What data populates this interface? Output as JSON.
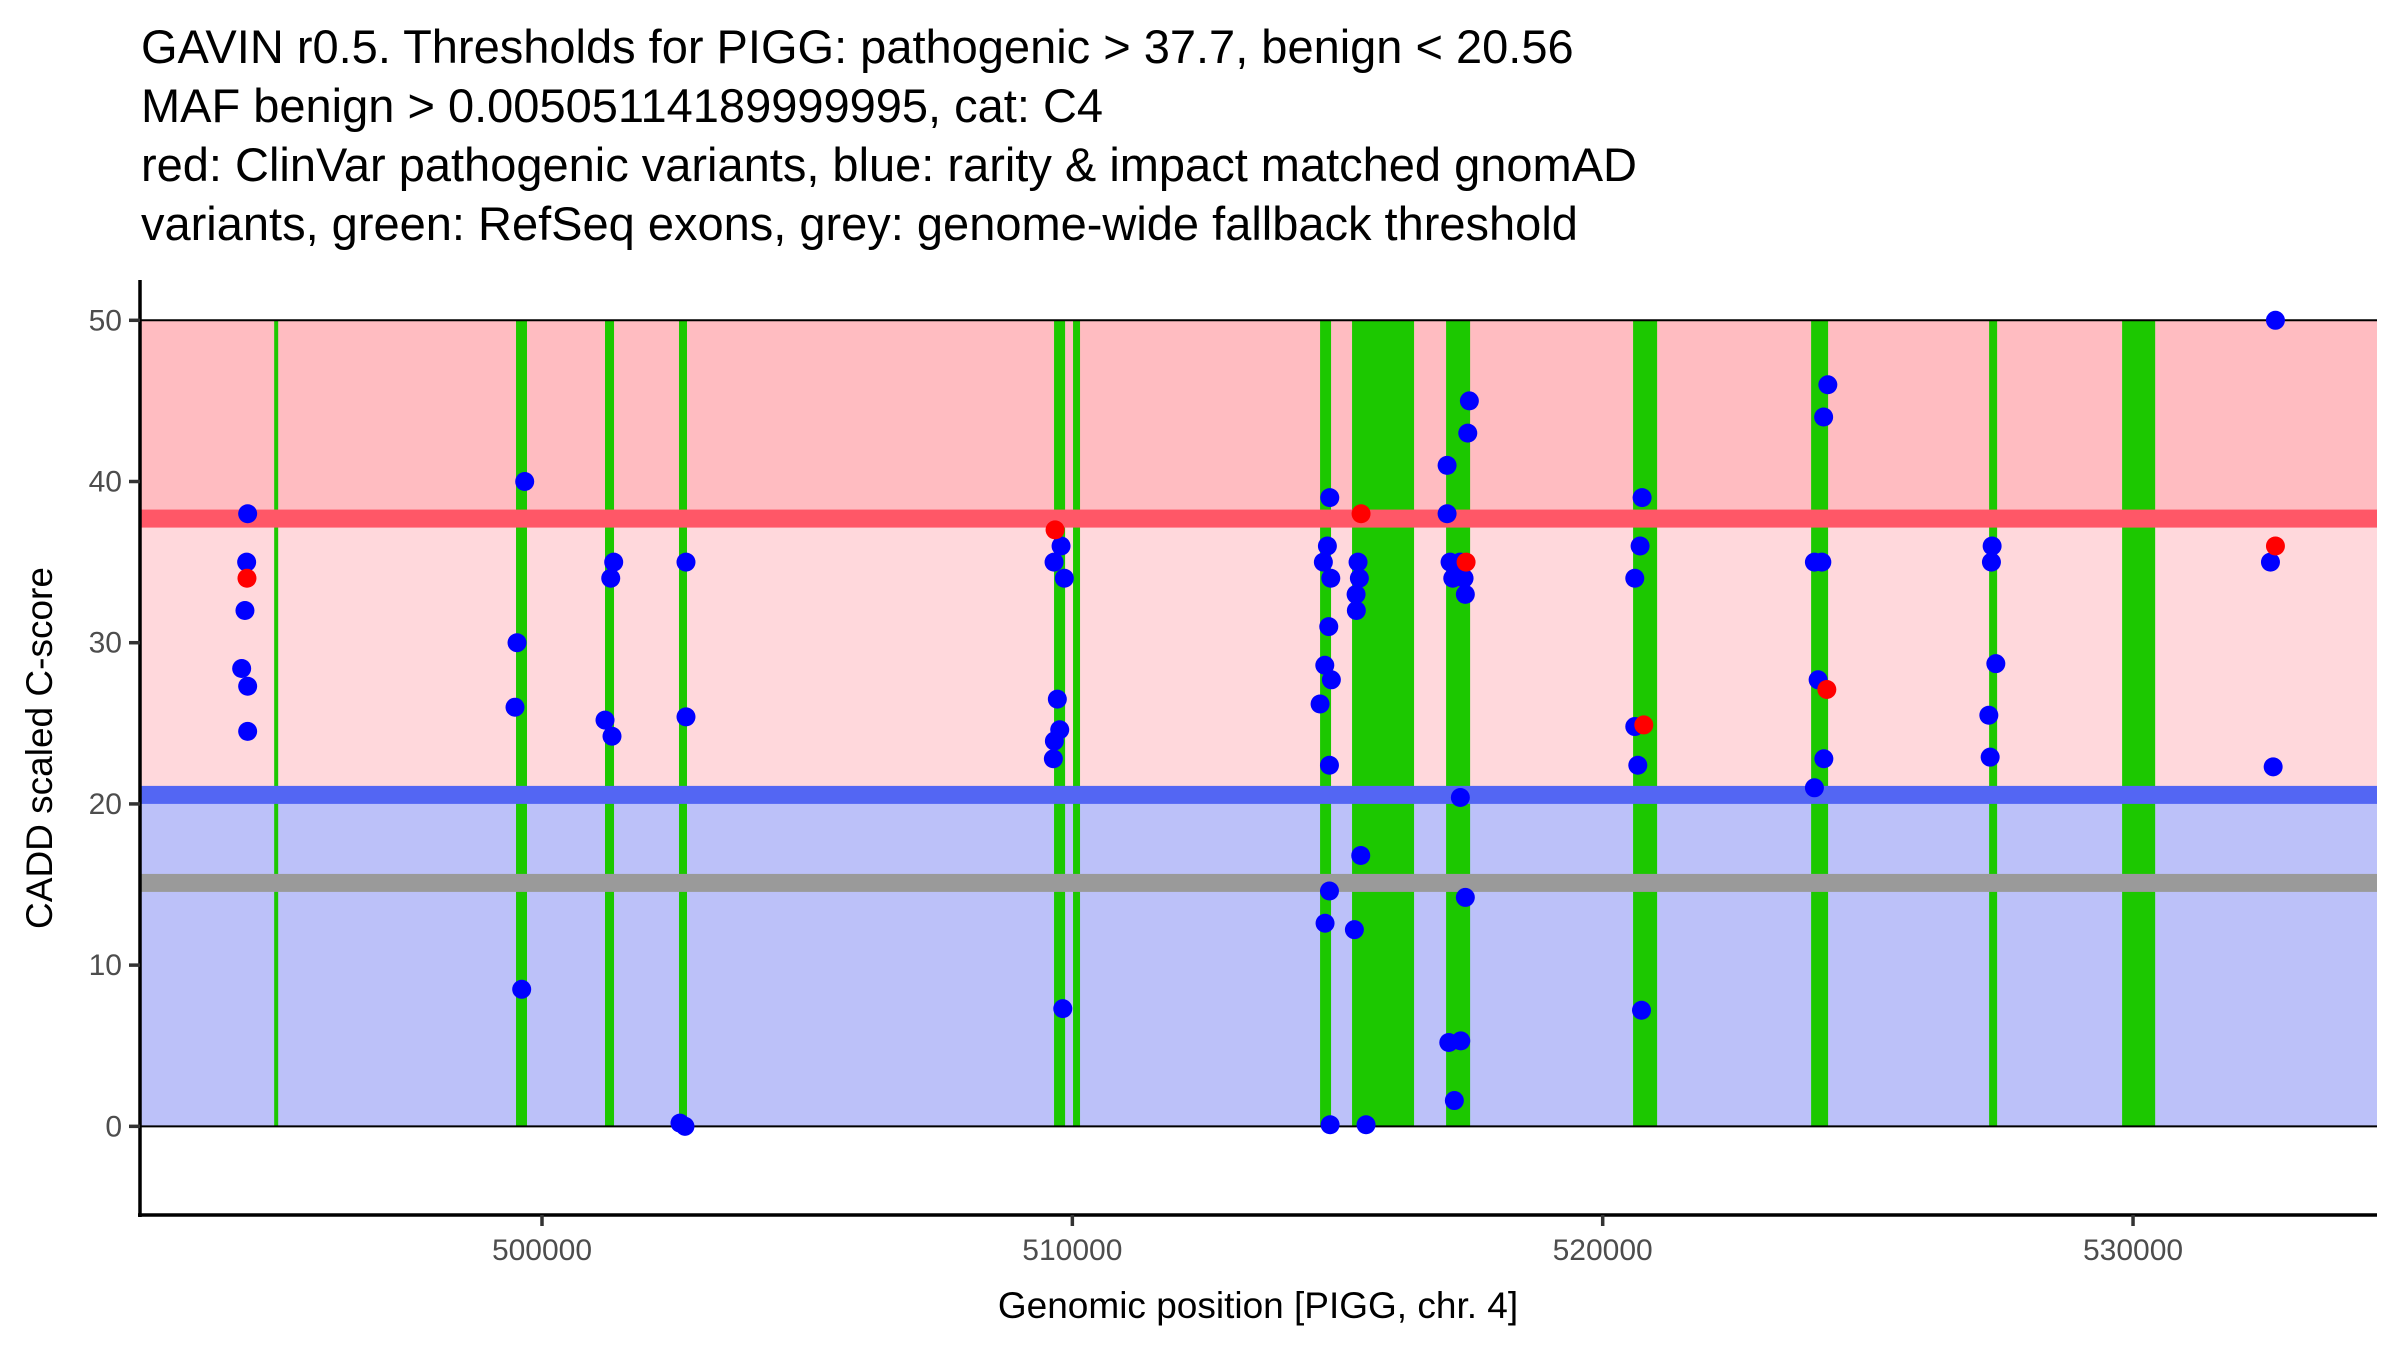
{
  "chart_data": {
    "type": "scatter",
    "title_lines": [
      "GAVIN r0.5. Thresholds for PIGG: pathogenic > 37.7, benign < 20.56",
      "MAF benign > 0.00505114189999995, cat: C4",
      "red: ClinVar pathogenic variants, blue: rarity & impact matched gnomAD",
      "variants, green: RefSeq exons, grey: genome-wide fallback threshold"
    ],
    "xlabel": "Genomic position [PIGG, chr. 4]",
    "ylabel": "CADD scaled C-score",
    "xlim": [
      492420,
      534600
    ],
    "ylim": [
      -5.5,
      52.5
    ],
    "x_ticks": [
      500000,
      510000,
      520000,
      530000
    ],
    "x_tick_labels": [
      "500000",
      "510000",
      "520000",
      "530000"
    ],
    "y_ticks": [
      0,
      10,
      20,
      30,
      40,
      50
    ],
    "y_tick_labels": [
      "0",
      "10",
      "20",
      "30",
      "40",
      "50"
    ],
    "grid": false,
    "legend": "none",
    "colors": {
      "pathogenic_zone": "#ffbcc1",
      "vus_zone": "#ffd8dc",
      "benign_zone": "#bcc1f9",
      "pathogenic_threshold": "#ff5767",
      "benign_threshold": "#5366f3",
      "fallback_threshold": "#9a9a9a",
      "exon": "#1cc800",
      "clinvar": "#ff0000",
      "gnomad": "#0000ff"
    },
    "zones": [
      {
        "name": "pathogenic",
        "from": 37.7,
        "to": 50
      },
      {
        "name": "vus",
        "from": 20.56,
        "to": 37.7
      },
      {
        "name": "benign",
        "from": 0,
        "to": 20.56
      }
    ],
    "thresholds": [
      {
        "name": "pathogenic",
        "value": 37.7
      },
      {
        "name": "benign",
        "value": 20.56
      },
      {
        "name": "fallback",
        "value": 15.1
      }
    ],
    "exons": [
      [
        494950,
        495020
      ],
      [
        499510,
        499717
      ],
      [
        501188,
        501358
      ],
      [
        502583,
        502734
      ],
      [
        509655,
        509863
      ],
      [
        510013,
        510145
      ],
      [
        514671,
        514878
      ],
      [
        515274,
        516443
      ],
      [
        517047,
        517500
      ],
      [
        520573,
        521026
      ],
      [
        523930,
        524250
      ],
      [
        527286,
        527437
      ],
      [
        529794,
        530417
      ]
    ],
    "series": [
      {
        "name": "gnomAD",
        "points": [
          [
            494450,
            38.0
          ],
          [
            494431,
            35.0
          ],
          [
            494399,
            32.0
          ],
          [
            494337,
            28.4
          ],
          [
            494450,
            27.3
          ],
          [
            494450,
            24.5
          ],
          [
            499674,
            40.0
          ],
          [
            499529,
            30.0
          ],
          [
            499491,
            26.0
          ],
          [
            499617,
            8.5
          ],
          [
            501352,
            35.0
          ],
          [
            501296,
            34.0
          ],
          [
            501188,
            25.2
          ],
          [
            501320,
            24.2
          ],
          [
            502715,
            35.0
          ],
          [
            502715,
            25.4
          ],
          [
            502602,
            0.2
          ],
          [
            502696,
            0.0
          ],
          [
            509787,
            36.0
          ],
          [
            509655,
            35.0
          ],
          [
            509849,
            34.0
          ],
          [
            509717,
            26.5
          ],
          [
            509762,
            24.6
          ],
          [
            509661,
            23.9
          ],
          [
            509642,
            22.8
          ],
          [
            509820,
            7.3
          ],
          [
            514854,
            39.0
          ],
          [
            514809,
            36.0
          ],
          [
            514733,
            35.0
          ],
          [
            514873,
            34.0
          ],
          [
            514835,
            31.0
          ],
          [
            514760,
            28.6
          ],
          [
            514884,
            27.7
          ],
          [
            514671,
            26.2
          ],
          [
            514848,
            22.4
          ],
          [
            514848,
            14.6
          ],
          [
            514765,
            12.6
          ],
          [
            514860,
            0.1
          ],
          [
            515387,
            35.0
          ],
          [
            515412,
            34.0
          ],
          [
            515350,
            33.0
          ],
          [
            515355,
            32.0
          ],
          [
            515438,
            16.8
          ],
          [
            515318,
            12.2
          ],
          [
            515538,
            0.1
          ],
          [
            517486,
            45.0
          ],
          [
            517456,
            43.0
          ],
          [
            517066,
            41.0
          ],
          [
            517066,
            38.0
          ],
          [
            517122,
            35.0
          ],
          [
            517311,
            35.0
          ],
          [
            517173,
            34.0
          ],
          [
            517386,
            34.0
          ],
          [
            517410,
            33.0
          ],
          [
            517316,
            20.4
          ],
          [
            517410,
            14.2
          ],
          [
            517098,
            5.2
          ],
          [
            517324,
            5.3
          ],
          [
            517203,
            1.6
          ],
          [
            520743,
            39.0
          ],
          [
            520705,
            36.0
          ],
          [
            520605,
            34.0
          ],
          [
            520605,
            24.8
          ],
          [
            520662,
            22.4
          ],
          [
            520732,
            7.2
          ],
          [
            524245,
            46.0
          ],
          [
            524166,
            44.0
          ],
          [
            523992,
            35.0
          ],
          [
            524132,
            35.0
          ],
          [
            524062,
            27.7
          ],
          [
            524170,
            22.8
          ],
          [
            523992,
            21.0
          ],
          [
            527343,
            36.0
          ],
          [
            527330,
            35.0
          ],
          [
            527413,
            28.7
          ],
          [
            527281,
            25.5
          ],
          [
            527306,
            22.9
          ],
          [
            532685,
            50.0
          ],
          [
            532591,
            35.0
          ],
          [
            532642,
            22.3
          ]
        ]
      },
      {
        "name": "ClinVar",
        "points": [
          [
            494437,
            34.0
          ],
          [
            509674,
            37.0
          ],
          [
            515444,
            38.0
          ],
          [
            517424,
            35.0
          ],
          [
            520775,
            24.9
          ],
          [
            524226,
            27.1
          ],
          [
            532685,
            36.0
          ]
        ]
      }
    ]
  }
}
